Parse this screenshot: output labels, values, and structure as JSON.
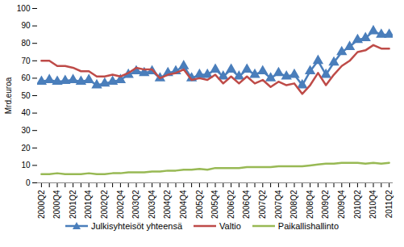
{
  "chart_data": {
    "type": "line",
    "y_label": "Mrd.euroa",
    "categories": [
      "2000Q2",
      null,
      "2000Q4",
      null,
      "2001Q2",
      null,
      "2001Q4",
      null,
      "2002Q2",
      null,
      "2002Q4",
      null,
      "2003Q2",
      null,
      "2003Q4",
      null,
      "2004Q2",
      null,
      "2004Q4",
      null,
      "2005Q2",
      null,
      "2005Q4",
      null,
      "2006Q2",
      null,
      "2006Q4",
      null,
      "2007Q2",
      null,
      "2007Q4",
      null,
      "2008Q2",
      null,
      "2008Q4",
      null,
      "2009Q2",
      null,
      "2009Q4",
      null,
      "2010Q2",
      null,
      "2010Q4",
      null,
      "2011Q2"
    ],
    "series": [
      {
        "name": "Julkisyhteisöt yhteensä",
        "color": "#4a7ebb",
        "marker": "triangle",
        "values": [
          58,
          59,
          58,
          58.5,
          59,
          58,
          59,
          56,
          57,
          58,
          59,
          62,
          64,
          63,
          64,
          60,
          63,
          64,
          67,
          60,
          62,
          62,
          65,
          61,
          65,
          61,
          65,
          62,
          64,
          60,
          63,
          61,
          62,
          56,
          64,
          70,
          62,
          69,
          75,
          78,
          82,
          83,
          87,
          85,
          85
        ]
      },
      {
        "name": "Valtio",
        "color": "#be4b48",
        "values": [
          70,
          70,
          67,
          67,
          66,
          64,
          64,
          61,
          61,
          62,
          61,
          63,
          66,
          65,
          65,
          60,
          62,
          63,
          65,
          59,
          60,
          59,
          62,
          57,
          61,
          57,
          61,
          57,
          59,
          55,
          58,
          56,
          57,
          51,
          56,
          63,
          56,
          62,
          67,
          70,
          75,
          76,
          79,
          77,
          77
        ]
      },
      {
        "name": "Paikallishallinto",
        "color": "#98b954",
        "values": [
          5,
          5,
          5.5,
          5,
          5,
          5,
          5.5,
          5,
          5,
          5.5,
          5.5,
          6,
          6,
          6,
          6.5,
          6.5,
          7,
          7,
          7.5,
          7.5,
          8,
          7.5,
          8.5,
          8.5,
          8.5,
          8.5,
          9,
          9,
          9,
          9,
          9.5,
          9.5,
          9.5,
          9.5,
          10,
          10.5,
          11,
          11,
          11.5,
          11.5,
          11.5,
          11,
          11.5,
          11,
          11.5
        ]
      }
    ],
    "ylim": [
      0,
      100
    ],
    "yticks": [
      0,
      10,
      20,
      30,
      40,
      50,
      60,
      70,
      80,
      90,
      100
    ],
    "grid": false,
    "legend": "bottom"
  }
}
